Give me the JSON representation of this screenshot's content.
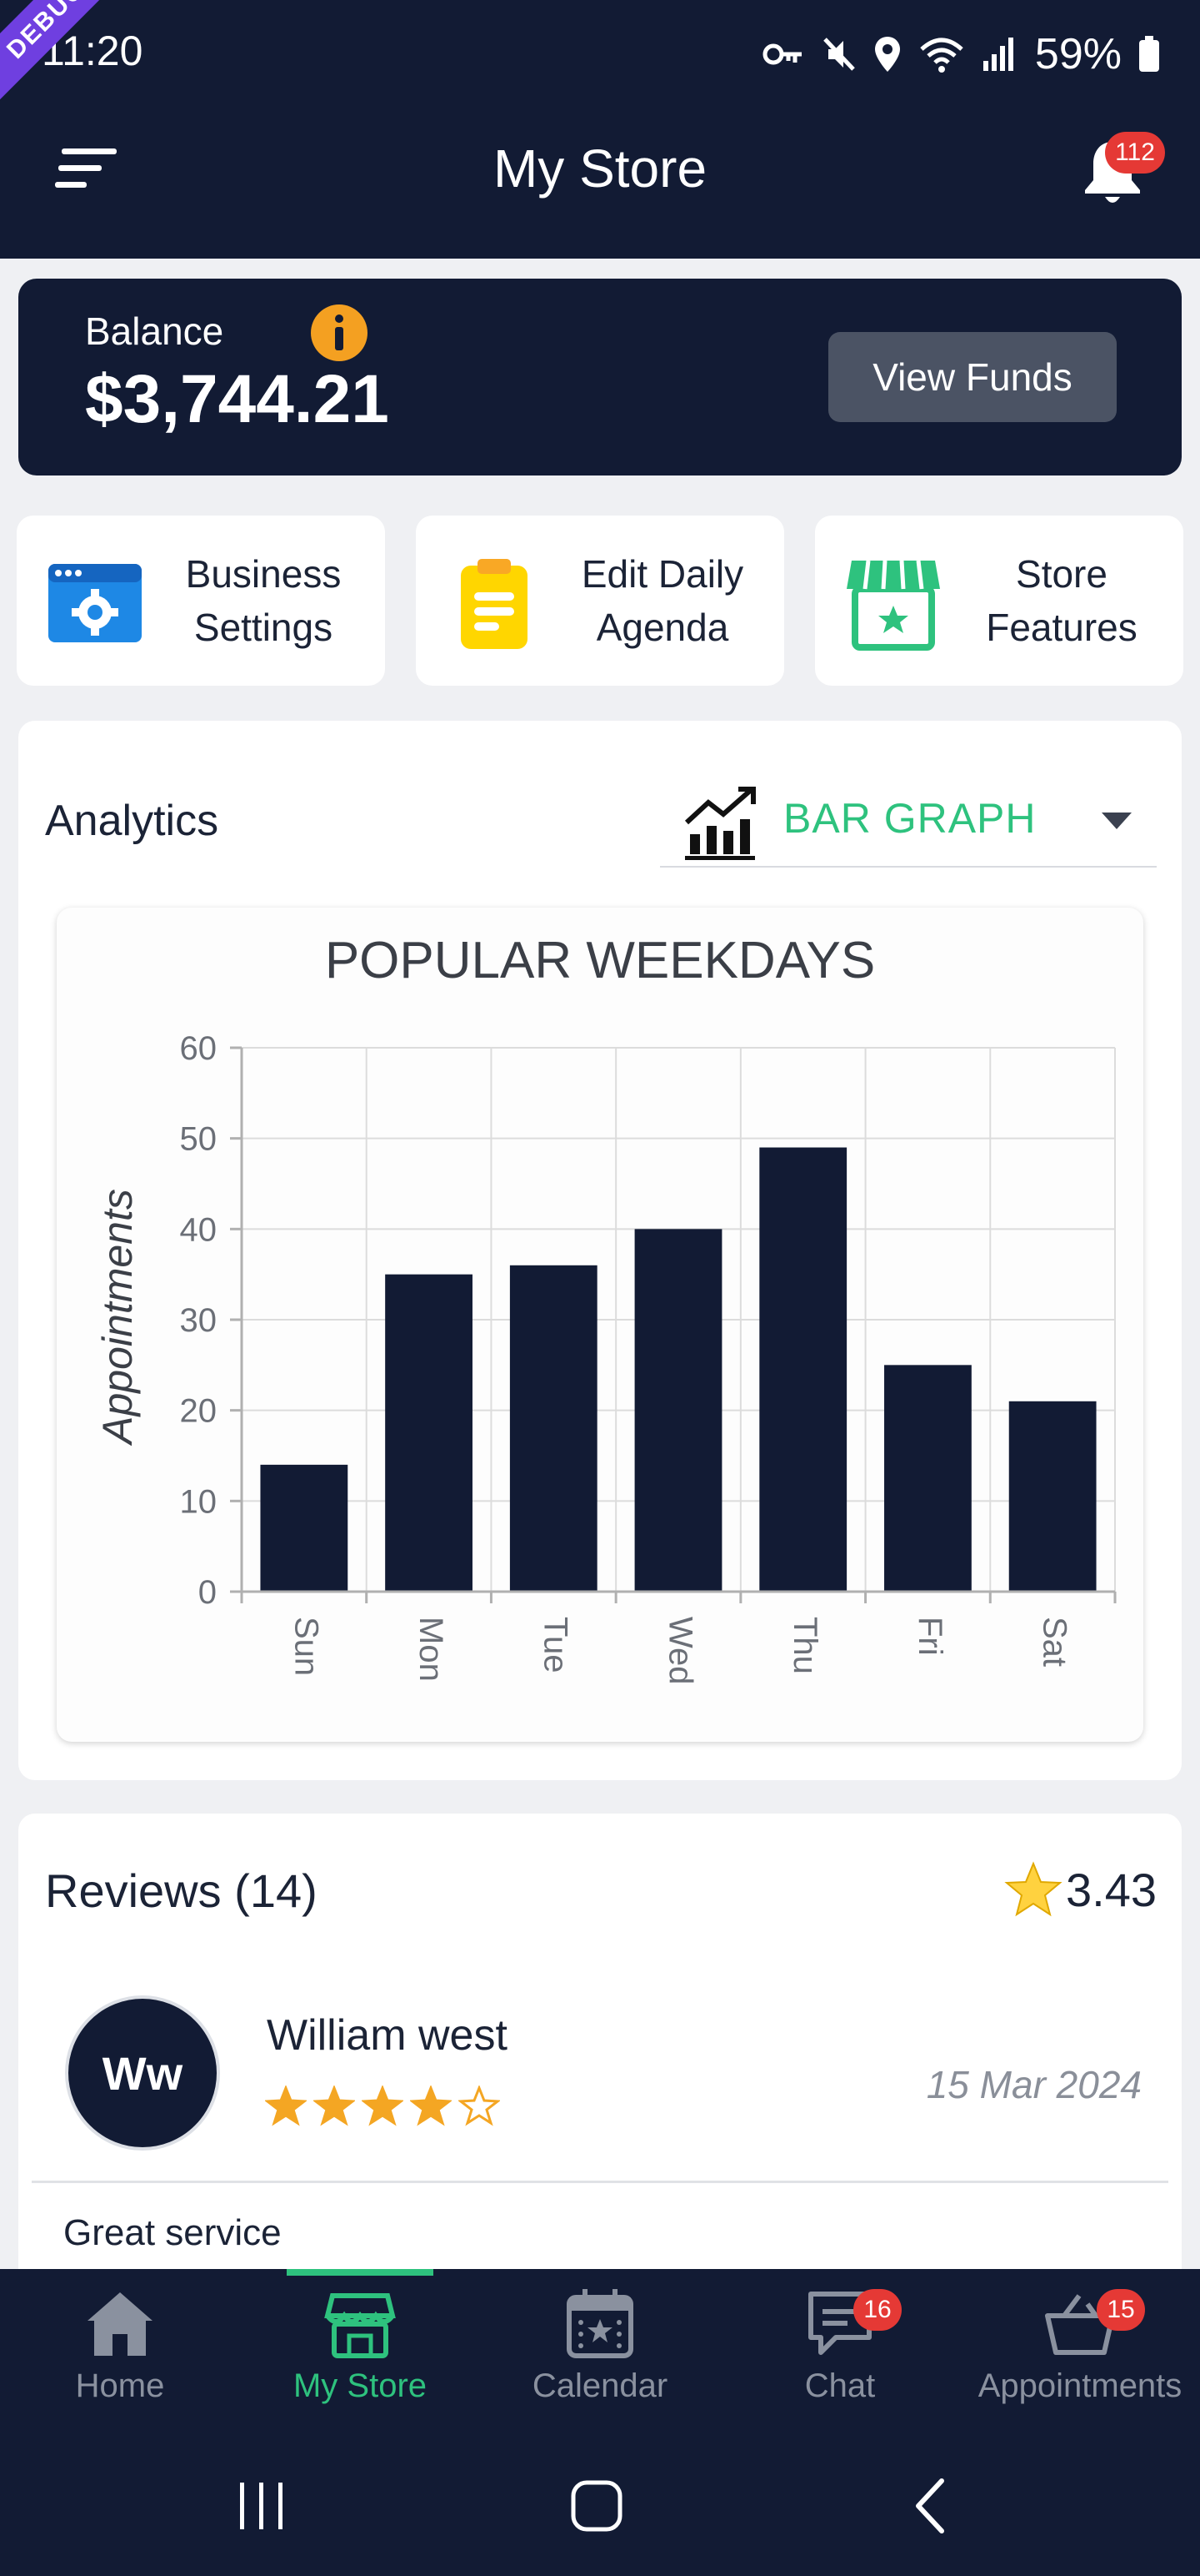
{
  "status_bar": {
    "time": "11:20",
    "battery": "59%",
    "icons": [
      "key-icon",
      "mute-icon",
      "location-icon",
      "wifi-icon",
      "signal-icon",
      "battery-icon"
    ]
  },
  "debug_banner": "DEBUG",
  "app_bar": {
    "title": "My Store",
    "notification_count": "112"
  },
  "balance": {
    "label": "Balance",
    "amount": "$3,744.21",
    "button": "View Funds"
  },
  "quick_actions": [
    {
      "label": "Business Settings",
      "icon": "business-settings-icon"
    },
    {
      "label": "Edit Daily Agenda",
      "icon": "clipboard-icon"
    },
    {
      "label": "Store Features",
      "icon": "storefront-icon"
    }
  ],
  "analytics": {
    "title": "Analytics",
    "graph_type": "BAR GRAPH"
  },
  "chart_data": {
    "type": "bar",
    "title": "POPULAR WEEKDAYS",
    "xlabel": "",
    "ylabel": "Appointments",
    "categories": [
      "Sun",
      "Mon",
      "Tue",
      "Wed",
      "Thu",
      "Fri",
      "Sat"
    ],
    "values": [
      14,
      35,
      36,
      40,
      49,
      25,
      21
    ],
    "ylim": [
      0,
      60
    ],
    "yticks": [
      0,
      10,
      20,
      30,
      40,
      50,
      60
    ],
    "grid": true,
    "bar_color": "#121b34"
  },
  "reviews": {
    "title": "Reviews (14)",
    "average": "3.43",
    "items": [
      {
        "initials": "Ww",
        "name": "William west",
        "rating": 4,
        "max_rating": 5,
        "date": "15 Mar 2024",
        "text": "Great service"
      }
    ]
  },
  "bottom_nav": {
    "items": [
      {
        "label": "Home",
        "icon": "home-icon"
      },
      {
        "label": "My Store",
        "icon": "store-icon"
      },
      {
        "label": "Calendar",
        "icon": "calendar-icon"
      },
      {
        "label": "Chat",
        "icon": "chat-icon",
        "badge": "16"
      },
      {
        "label": "Appointments",
        "icon": "basket-icon",
        "badge": "15"
      }
    ],
    "active": "My Store"
  },
  "colors": {
    "navy": "#121b34",
    "accent_green": "#2ec27e",
    "badge_red": "#e53935",
    "star_orange": "#f4a623",
    "info_orange": "#f4a021"
  }
}
